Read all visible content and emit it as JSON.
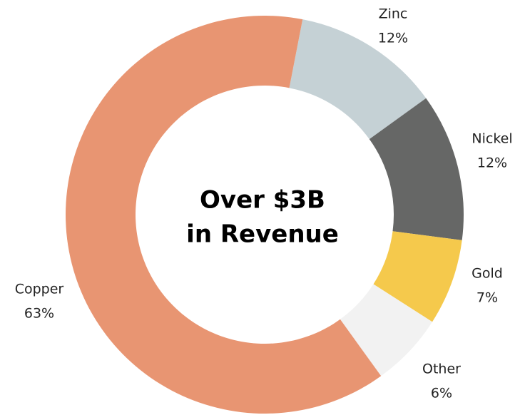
{
  "chart_data": {
    "type": "donut",
    "center_text": [
      "Over $3B",
      "in Revenue"
    ],
    "categories": [
      "Zinc",
      "Nickel",
      "Gold",
      "Other",
      "Copper"
    ],
    "values": [
      12,
      12,
      7,
      6,
      63
    ],
    "value_labels": [
      "12%",
      "12%",
      "7%",
      "6%",
      "63%"
    ],
    "colors": [
      "#c5d1d5",
      "#666766",
      "#f5c94c",
      "#f2f2f2",
      "#e89572"
    ]
  }
}
